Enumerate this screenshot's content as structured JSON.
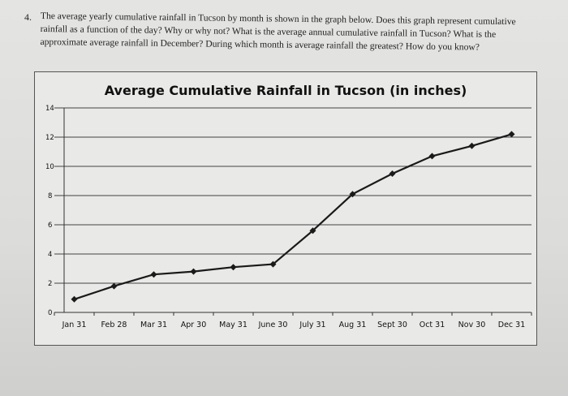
{
  "question": {
    "number": "4.",
    "text": "The average yearly cumulative rainfall in Tucson by month is shown in the graph below. Does this graph represent cumulative rainfall as a function of the day? Why or why not? What is the average annual cumulative rainfall in Tucson? What is the approximate average rainfall in December? During which month is average rainfall the greatest? How do you know?"
  },
  "chart_data": {
    "type": "line",
    "title": "Average Cumulative Rainfall in Tucson (in inches)",
    "xlabel": "",
    "ylabel": "",
    "categories": [
      "Jan 31",
      "Feb 28",
      "Mar 31",
      "Apr 30",
      "May 31",
      "June 30",
      "July 31",
      "Aug 31",
      "Sept 30",
      "Oct 31",
      "Nov 30",
      "Dec 31"
    ],
    "values": [
      0.9,
      1.8,
      2.6,
      2.8,
      3.1,
      3.3,
      5.6,
      8.1,
      9.5,
      10.7,
      11.4,
      12.2
    ],
    "ylim": [
      0,
      14
    ],
    "yticks": [
      0,
      2,
      4,
      6,
      8,
      10,
      12,
      14
    ],
    "grid": true,
    "marker": "diamond",
    "line_color": "#1a1a1a"
  }
}
